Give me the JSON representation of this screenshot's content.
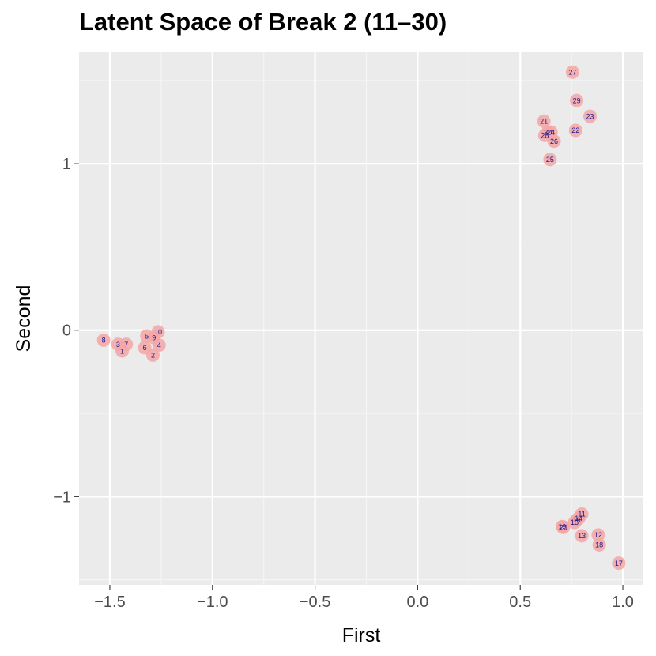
{
  "chart_data": {
    "type": "scatter",
    "title": "Latent Space of Break 2 (11–30)",
    "xlabel": "First",
    "ylabel": "Second",
    "xlim": [
      -1.65,
      1.1
    ],
    "ylim": [
      -1.53,
      1.67
    ],
    "x_ticks": [
      -1.5,
      -1.0,
      -0.5,
      0.0,
      0.5,
      1.0
    ],
    "x_tick_labels": [
      "−1.5",
      "−1.0",
      "−0.5",
      "0.0",
      "0.5",
      "1.0"
    ],
    "y_ticks": [
      -1,
      0,
      1
    ],
    "y_tick_labels": [
      "−1",
      "0",
      "1"
    ],
    "grid": true,
    "point_fill": "#f4a6a6",
    "label_color": "#1a1a8c",
    "panel_background": "#ebebeb",
    "points": [
      {
        "label": "1",
        "x": -1.44,
        "y": -0.125
      },
      {
        "label": "2",
        "x": -1.29,
        "y": -0.15
      },
      {
        "label": "3",
        "x": -1.46,
        "y": -0.085
      },
      {
        "label": "4",
        "x": -1.26,
        "y": -0.09
      },
      {
        "label": "5",
        "x": -1.32,
        "y": -0.035
      },
      {
        "label": "6",
        "x": -1.33,
        "y": -0.105
      },
      {
        "label": "7",
        "x": -1.42,
        "y": -0.085
      },
      {
        "label": "8",
        "x": -1.53,
        "y": -0.06
      },
      {
        "label": "9",
        "x": -1.285,
        "y": -0.045
      },
      {
        "label": "10",
        "x": -1.265,
        "y": -0.01
      },
      {
        "label": "11",
        "x": 0.8,
        "y": -1.105
      },
      {
        "label": "12",
        "x": 0.88,
        "y": -1.23
      },
      {
        "label": "13",
        "x": 0.8,
        "y": -1.235
      },
      {
        "label": "14",
        "x": 0.785,
        "y": -1.13
      },
      {
        "label": "15",
        "x": 0.765,
        "y": -1.155
      },
      {
        "label": "16",
        "x": 0.775,
        "y": -1.14
      },
      {
        "label": "17",
        "x": 0.98,
        "y": -1.4
      },
      {
        "label": "18",
        "x": 0.885,
        "y": -1.29
      },
      {
        "label": "19",
        "x": 0.705,
        "y": -1.18
      },
      {
        "label": "20",
        "x": 0.71,
        "y": -1.185
      },
      {
        "label": "21",
        "x": 0.615,
        "y": 1.255
      },
      {
        "label": "22",
        "x": 0.77,
        "y": 1.2
      },
      {
        "label": "23",
        "x": 0.84,
        "y": 1.285
      },
      {
        "label": "24",
        "x": 0.65,
        "y": 1.19
      },
      {
        "label": "25",
        "x": 0.645,
        "y": 1.025
      },
      {
        "label": "26",
        "x": 0.665,
        "y": 1.135
      },
      {
        "label": "27",
        "x": 0.755,
        "y": 1.55
      },
      {
        "label": "28",
        "x": 0.62,
        "y": 1.17
      },
      {
        "label": "29",
        "x": 0.775,
        "y": 1.38
      },
      {
        "label": "30",
        "x": 0.635,
        "y": 1.19
      }
    ]
  }
}
